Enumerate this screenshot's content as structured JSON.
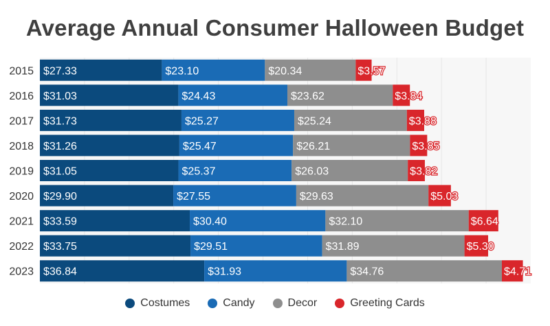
{
  "chart_data": {
    "type": "bar",
    "orientation": "horizontal",
    "stacked": true,
    "title": "Average Annual Consumer Halloween Budget",
    "categories": [
      "2015",
      "2016",
      "2017",
      "2018",
      "2019",
      "2020",
      "2021",
      "2022",
      "2023"
    ],
    "series": [
      {
        "name": "Costumes",
        "color": "#0b4a7d",
        "values": [
          27.33,
          31.03,
          31.73,
          31.26,
          31.05,
          29.9,
          33.59,
          33.75,
          36.84
        ],
        "labels": [
          "$27.33",
          "$31.03",
          "$31.73",
          "$31.26",
          "$31.05",
          "$29.90",
          "$33.59",
          "$33.75",
          "$36.84"
        ]
      },
      {
        "name": "Candy",
        "color": "#1a6bb5",
        "values": [
          23.1,
          24.43,
          25.27,
          25.47,
          25.37,
          27.55,
          30.4,
          29.51,
          31.93
        ],
        "labels": [
          "$23.10",
          "$24.43",
          "$25.27",
          "$25.47",
          "$25.37",
          "$27.55",
          "$30.40",
          "$29.51",
          "$31.93"
        ]
      },
      {
        "name": "Decor",
        "color": "#8e8e8e",
        "values": [
          20.34,
          23.62,
          25.24,
          26.21,
          26.03,
          29.63,
          32.1,
          31.89,
          34.76
        ],
        "labels": [
          "$20.34",
          "$23.62",
          "$25.24",
          "$26.21",
          "$26.03",
          "$29.63",
          "$32.10",
          "$31.89",
          "$34.76"
        ]
      },
      {
        "name": "Greeting Cards",
        "color": "#d9262b",
        "values": [
          3.57,
          3.84,
          3.88,
          3.85,
          3.82,
          5.03,
          6.64,
          5.3,
          4.71
        ],
        "labels": [
          "$3.57",
          "$3.84",
          "$3.88",
          "$3.85",
          "$3.82",
          "$5.03",
          "$6.64",
          "$5.30",
          "$4.71"
        ]
      }
    ],
    "xlim": [
      0,
      110
    ],
    "grid": true,
    "legend_position": "bottom"
  }
}
